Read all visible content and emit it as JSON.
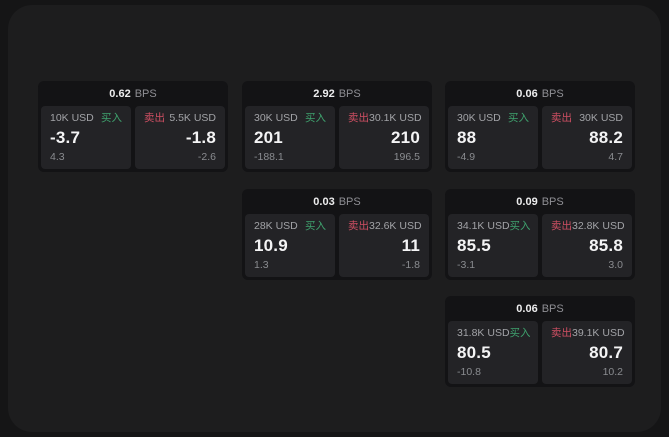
{
  "labels": {
    "bps_unit": "BPS",
    "buy": "买入",
    "sell": "卖出"
  },
  "colors": {
    "page_bg": "#151516",
    "board_bg": "#1d1d1e",
    "card_bg": "#131315",
    "panel_bg": "#232326",
    "buy_green": "#3fa26e",
    "sell_red": "#cf4f63",
    "price_text": "#f4f4f5",
    "muted_text": "#8a8c90"
  },
  "cards": [
    {
      "bps": "0.62",
      "col": 0,
      "row": 0,
      "buy": {
        "amount": "10K USD",
        "price": "-3.7",
        "delta": "4.3"
      },
      "sell": {
        "amount": "5.5K USD",
        "price": "-1.8",
        "delta": "-2.6"
      }
    },
    {
      "bps": "2.92",
      "col": 1,
      "row": 0,
      "buy": {
        "amount": "30K USD",
        "price": "201",
        "delta": "-188.1"
      },
      "sell": {
        "amount": "30.1K USD",
        "price": "210",
        "delta": "196.5"
      }
    },
    {
      "bps": "0.06",
      "col": 2,
      "row": 0,
      "buy": {
        "amount": "30K USD",
        "price": "88",
        "delta": "-4.9"
      },
      "sell": {
        "amount": "30K USD",
        "price": "88.2",
        "delta": "4.7"
      }
    },
    {
      "bps": "0.03",
      "col": 1,
      "row": 1,
      "buy": {
        "amount": "28K USD",
        "price": "10.9",
        "delta": "1.3"
      },
      "sell": {
        "amount": "32.6K USD",
        "price": "11",
        "delta": "-1.8"
      }
    },
    {
      "bps": "0.09",
      "col": 2,
      "row": 1,
      "buy": {
        "amount": "34.1K USD",
        "price": "85.5",
        "delta": "-3.1"
      },
      "sell": {
        "amount": "32.8K USD",
        "price": "85.8",
        "delta": "3.0"
      }
    },
    {
      "bps": "0.06",
      "col": 2,
      "row": 2,
      "buy": {
        "amount": "31.8K USD",
        "price": "80.5",
        "delta": "-10.8"
      },
      "sell": {
        "amount": "39.1K USD",
        "price": "80.7",
        "delta": "10.2"
      }
    }
  ]
}
